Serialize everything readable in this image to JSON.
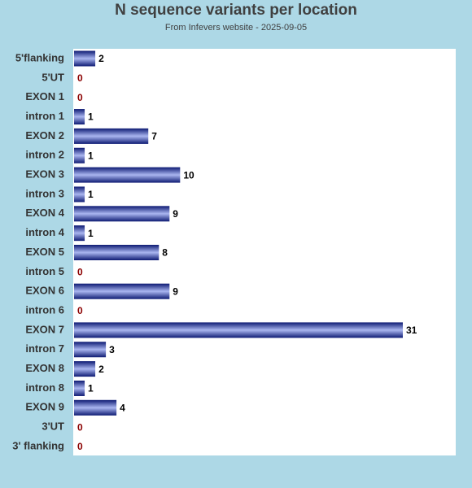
{
  "chart_data": {
    "type": "bar",
    "orientation": "horizontal",
    "title": "N sequence variants per location",
    "subtitle": "From Infevers website - 2025-09-05",
    "categories": [
      "5'flanking",
      "5'UT",
      "EXON 1",
      "intron 1",
      "EXON 2",
      "intron 2",
      "EXON 3",
      "intron 3",
      "EXON 4",
      "intron 4",
      "EXON 5",
      "intron 5",
      "EXON 6",
      "intron 6",
      "EXON 7",
      "intron 7",
      "EXON 8",
      "intron 8",
      "EXON 9",
      "3'UT",
      "3' flanking"
    ],
    "values": [
      2,
      0,
      0,
      1,
      7,
      1,
      10,
      1,
      9,
      1,
      8,
      0,
      9,
      0,
      31,
      3,
      2,
      1,
      4,
      0,
      0
    ],
    "xlim": [
      0,
      35
    ],
    "grid": false,
    "legend": "none"
  },
  "colors": {
    "page_background": "#add8e6",
    "plot_background": "#ffffff",
    "bar_edge": "#0d1a73",
    "bar_center": "#aab6f0",
    "value_label": "#000000",
    "zero_value_label": "#8b0000"
  }
}
